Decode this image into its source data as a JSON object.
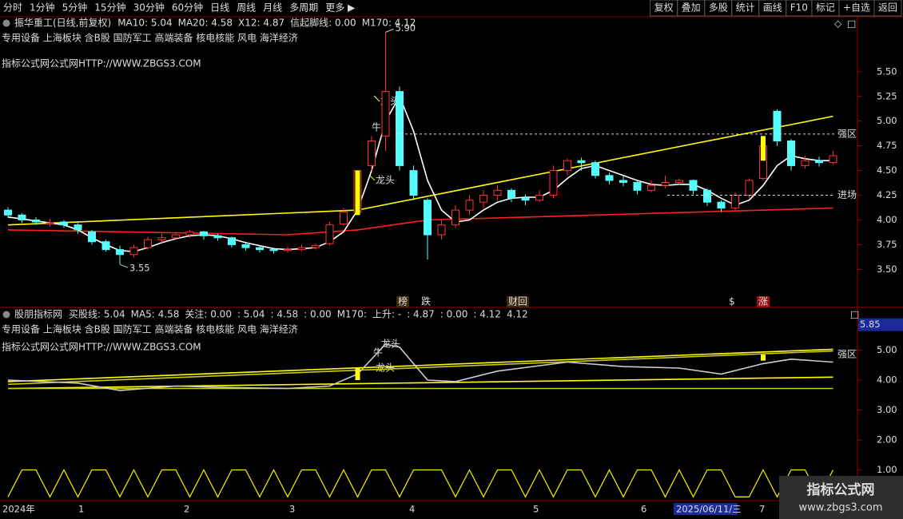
{
  "toolbar": {
    "tabs": [
      "分时",
      "1分钟",
      "5分钟",
      "15分钟",
      "30分钟",
      "60分钟",
      "日线",
      "周线",
      "月线",
      "多周期",
      "更多 ▶"
    ],
    "active": "日线",
    "buttons": [
      "复权",
      "叠加",
      "多股",
      "统计",
      "画线",
      "F10",
      "标记",
      "+自选",
      "返回"
    ]
  },
  "chart_data": [
    {
      "type": "candlestick",
      "title": "振华重工(日线,前复权)",
      "indicators": [
        {
          "text": "MA10: 5.04",
          "color": "#ffff00"
        },
        {
          "text": "MA20: 4.58",
          "color": "#ffffff"
        },
        {
          "text": "X12: 4.87",
          "color": "#ffffff"
        },
        {
          "text": "信起脚线: 0.00",
          "color": "#3a64ff"
        },
        {
          "text": "M170: 4.12",
          "color": "#ffffff"
        }
      ],
      "sectors": "专用设备 上海板块 含B股 国防军工 高端装备 核电核能 风电 海洋经济",
      "watermark": "指标公式网公式网HTTP://WWW.ZBGS3.COM",
      "ylim": [
        3.22,
        6.0
      ],
      "yticks": [
        {
          "value": 5.5,
          "label": "5.50"
        },
        {
          "value": 5.25,
          "label": "5.25"
        },
        {
          "value": 5,
          "label": "5.00"
        },
        {
          "value": 4.75,
          "label": "4.75"
        },
        {
          "value": 4.5,
          "label": "4.50"
        },
        {
          "value": 4.25,
          "label": "4.25"
        },
        {
          "value": 4,
          "label": "4.00"
        },
        {
          "value": 3.75,
          "label": "3.75"
        },
        {
          "value": 3.5,
          "label": "3.50"
        }
      ],
      "open": [
        4.1,
        4.05,
        4.0,
        3.96,
        3.98,
        3.95,
        3.88,
        3.78,
        3.7,
        3.65,
        3.72,
        3.8,
        3.82,
        3.85,
        3.88,
        3.84,
        3.82,
        3.75,
        3.72,
        3.7,
        3.69,
        3.7,
        3.72,
        3.76,
        3.96,
        4.08,
        4.55,
        4.85,
        5.3,
        4.5,
        4.2,
        3.85,
        3.95,
        4.1,
        4.18,
        4.25,
        4.3,
        4.22,
        4.2,
        4.25,
        4.5,
        4.6,
        4.58,
        4.45,
        4.4,
        4.38,
        4.3,
        4.35,
        4.38,
        4.4,
        4.3,
        4.18,
        4.12,
        4.25,
        4.42,
        5.1,
        4.8,
        4.55,
        4.6,
        4.58
      ],
      "high": [
        4.13,
        4.07,
        4.03,
        4.01,
        4.0,
        3.97,
        3.9,
        3.8,
        3.74,
        3.75,
        3.83,
        3.86,
        3.88,
        3.9,
        3.89,
        3.86,
        3.83,
        3.77,
        3.74,
        3.72,
        3.73,
        3.75,
        3.76,
        3.98,
        4.12,
        4.5,
        4.85,
        5.9,
        5.35,
        4.55,
        4.22,
        4.0,
        4.15,
        4.25,
        4.3,
        4.35,
        4.32,
        4.26,
        4.3,
        4.55,
        4.62,
        4.63,
        4.6,
        4.48,
        4.45,
        4.4,
        4.4,
        4.45,
        4.42,
        4.41,
        4.32,
        4.2,
        4.28,
        4.42,
        4.8,
        5.12,
        4.82,
        4.65,
        4.64,
        4.7
      ],
      "low": [
        4.02,
        3.97,
        3.95,
        3.93,
        3.92,
        3.86,
        3.75,
        3.68,
        3.55,
        3.62,
        3.7,
        3.77,
        3.8,
        3.82,
        3.8,
        3.79,
        3.72,
        3.69,
        3.67,
        3.66,
        3.67,
        3.68,
        3.7,
        3.74,
        3.94,
        4.05,
        4.5,
        4.7,
        4.5,
        4.2,
        3.6,
        3.8,
        3.92,
        4.05,
        4.12,
        4.2,
        4.18,
        4.15,
        4.18,
        4.22,
        4.45,
        4.5,
        4.42,
        4.36,
        4.34,
        4.26,
        4.28,
        4.32,
        4.35,
        4.26,
        4.14,
        4.08,
        4.1,
        4.22,
        4.4,
        4.75,
        4.5,
        4.52,
        4.54,
        4.56
      ],
      "close": [
        4.05,
        4.0,
        3.98,
        3.97,
        3.95,
        3.9,
        3.78,
        3.7,
        3.65,
        3.72,
        3.8,
        3.82,
        3.85,
        3.88,
        3.84,
        3.82,
        3.75,
        3.72,
        3.7,
        3.69,
        3.7,
        3.72,
        3.74,
        3.95,
        4.08,
        4.5,
        4.8,
        5.3,
        4.55,
        4.25,
        3.85,
        3.95,
        4.1,
        4.2,
        4.25,
        4.3,
        4.22,
        4.2,
        4.25,
        4.5,
        4.6,
        4.58,
        4.45,
        4.4,
        4.38,
        4.3,
        4.35,
        4.38,
        4.4,
        4.3,
        4.18,
        4.12,
        4.25,
        4.4,
        4.75,
        4.8,
        4.55,
        4.6,
        4.58,
        4.65
      ],
      "lines": [
        {
          "color": "#ffff00",
          "x": [
            0,
            25,
            59
          ],
          "values": [
            3.95,
            4.1,
            5.05
          ]
        },
        {
          "color": "#ff1e1e",
          "x": [
            0,
            20,
            25,
            30,
            59
          ],
          "values": [
            3.9,
            3.85,
            3.9,
            4.0,
            4.12
          ]
        },
        {
          "color": "#ffffff",
          "x": [
            0,
            1,
            2,
            3,
            4,
            5,
            6,
            7,
            8,
            9,
            10,
            11,
            12,
            13,
            14,
            15,
            16,
            17,
            18,
            19,
            20,
            21,
            22,
            23,
            24,
            25,
            26,
            27,
            28,
            29,
            30,
            31,
            32,
            33,
            34,
            35,
            36,
            37,
            38,
            39,
            40,
            41,
            42,
            43,
            44,
            45,
            46,
            47,
            48,
            49,
            50,
            51,
            52,
            53,
            54,
            55,
            56,
            57,
            58,
            59
          ],
          "values": [
            4.03,
            4.01,
            3.99,
            3.97,
            3.95,
            3.9,
            3.82,
            3.75,
            3.69,
            3.68,
            3.72,
            3.77,
            3.81,
            3.84,
            3.85,
            3.84,
            3.81,
            3.77,
            3.74,
            3.71,
            3.7,
            3.71,
            3.72,
            3.78,
            3.88,
            4.1,
            4.5,
            5.0,
            5.25,
            4.9,
            4.4,
            4.1,
            3.98,
            4.0,
            4.1,
            4.18,
            4.22,
            4.23,
            4.23,
            4.3,
            4.42,
            4.52,
            4.55,
            4.5,
            4.45,
            4.4,
            4.36,
            4.35,
            4.36,
            4.36,
            4.3,
            4.22,
            4.15,
            4.2,
            4.35,
            4.55,
            4.65,
            4.62,
            4.6,
            4.6
          ]
        }
      ],
      "signal_bars": [
        {
          "x": 25,
          "values": [
            4.05,
            4.5
          ]
        },
        {
          "x": 54,
          "values": [
            4.6,
            4.85
          ]
        }
      ],
      "marks": [
        {
          "label": "5.90",
          "value": 5.9,
          "x": 27
        },
        {
          "label": "3.55",
          "value": 3.55,
          "x": 8
        }
      ],
      "zones": [
        {
          "label": "强区",
          "value": 4.87
        },
        {
          "label": "进场",
          "value": 4.25
        }
      ],
      "callouts": [
        "龙头",
        "牛",
        "龙头"
      ],
      "events": [
        "榜",
        "跌",
        "财",
        "回",
        "$",
        "涨"
      ]
    },
    {
      "type": "line",
      "title": "股朋指标网",
      "indicators": [
        {
          "text": "买股线: 5.04",
          "color": "#ffff00"
        },
        {
          "text": "MA5: 4.58",
          "color": "#ffffff"
        },
        {
          "text": "关注: 0.00",
          "color": "#ff40ff"
        },
        {
          "text": ": 5.04",
          "color": "#888888"
        },
        {
          "text": ": 4.58",
          "color": "#ffffff"
        },
        {
          "text": ": 0.00",
          "color": "#ffffff"
        },
        {
          "text": "M170:",
          "color": "#ffffff"
        },
        {
          "text": "上升: -",
          "color": "#ff3030"
        },
        {
          "text": ": 4.87",
          "color": "#ffff00"
        },
        {
          "text": ": 0.00",
          "color": "#00ff00"
        },
        {
          "text": ": 4.12",
          "color": "#ffffff"
        },
        {
          "text": "4.12",
          "color": "#3a64ff"
        }
      ],
      "sectors": "专用设备 上海板块 含B股 国防军工 高端装备 核电核能 风电 海洋经济",
      "watermark": "指标公式网公式网HTTP://WWW.ZBGS3.COM",
      "ylim": [
        0,
        6.0
      ],
      "yticks": [
        {
          "value": 5,
          "label": "5.00"
        },
        {
          "value": 4,
          "label": "4.00"
        },
        {
          "value": 3,
          "label": "3.00"
        },
        {
          "value": 2,
          "label": "2.00"
        },
        {
          "value": 1,
          "label": "1.00"
        }
      ],
      "current": 5.85,
      "lines": [
        {
          "color": "#ffff00",
          "x": [
            0,
            59
          ],
          "values": [
            3.95,
            5.03
          ]
        },
        {
          "color": "#cccc00",
          "x": [
            0,
            59
          ],
          "values": [
            3.86,
            4.97
          ]
        },
        {
          "color": "#ffff00",
          "x": [
            0,
            59
          ],
          "values": [
            3.72,
            4.1
          ]
        },
        {
          "color": "#cccc00",
          "x": [
            0,
            59
          ],
          "values": [
            3.72,
            3.72
          ]
        },
        {
          "color": "#cccccc",
          "x": [
            0,
            5,
            8,
            12,
            16,
            20,
            23,
            25,
            27,
            28,
            30,
            32,
            35,
            40,
            44,
            48,
            51,
            54,
            56,
            59
          ],
          "values": [
            4.0,
            3.9,
            3.65,
            3.8,
            3.75,
            3.72,
            3.8,
            4.2,
            5.2,
            5.1,
            4.0,
            3.95,
            4.3,
            4.6,
            4.45,
            4.4,
            4.2,
            4.55,
            4.7,
            4.6
          ]
        }
      ],
      "signal_bars": [
        {
          "x": 25,
          "values": [
            4.0,
            4.4
          ]
        },
        {
          "x": 54,
          "values": [
            4.65,
            4.85
          ]
        }
      ],
      "oscillator": {
        "color": "#e6e600",
        "values": [
          0.1,
          1,
          1,
          0.1,
          1,
          0.1,
          1,
          1,
          0.1,
          1,
          0.1,
          1,
          1,
          0.1,
          1,
          0.1,
          1,
          1,
          0.1,
          1,
          0.1,
          1,
          1,
          0.1,
          1,
          0.1,
          1,
          1,
          0.1,
          1,
          1,
          1,
          0.1,
          1,
          0.1,
          1,
          1,
          0.1,
          1,
          0.1,
          1,
          1,
          0.1,
          1,
          0.1,
          1,
          1,
          0.1,
          1,
          0.1,
          1,
          1,
          0.1,
          0.1,
          1,
          0.1,
          1,
          1,
          0.1,
          1
        ]
      },
      "callouts": [
        "龙头",
        "牛",
        "龙头",
        "强区"
      ]
    }
  ],
  "time_axis": [
    "2024年",
    "1",
    "2",
    "3",
    "4",
    "5",
    "6",
    "2025/06/11/三",
    "7"
  ],
  "logo": {
    "title": "指标公式网",
    "url": "www.zbgs3.com"
  }
}
